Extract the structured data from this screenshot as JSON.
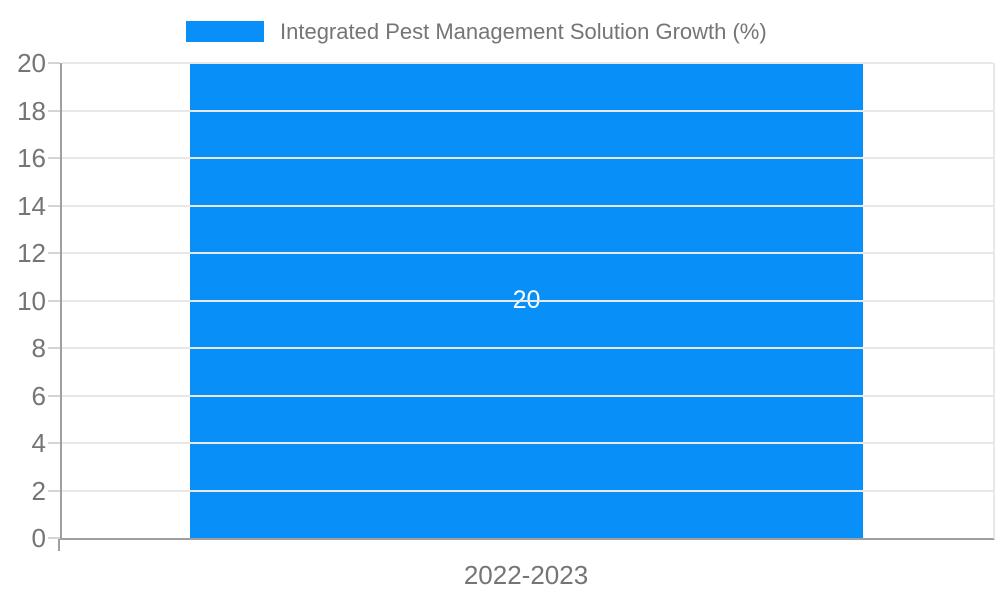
{
  "chart_data": {
    "type": "bar",
    "title": "Integrated Pest Management Solution Growth (%)",
    "categories": [
      "2022-2023"
    ],
    "series": [
      {
        "name": "Integrated Pest Management Solution Growth (%)",
        "values": [
          20
        ]
      }
    ],
    "bar_labels": [
      "20"
    ],
    "xlabel": "",
    "ylabel": "",
    "ylim": [
      0,
      20
    ],
    "ytick_step": 2,
    "yticks": [
      0,
      2,
      4,
      6,
      8,
      10,
      12,
      14,
      16,
      18,
      20
    ],
    "grid": true,
    "legend_position": "top"
  },
  "colors": {
    "bar": "#0890f8",
    "bar_label_text": "#ffffff",
    "grid_line": "#e8e8e8",
    "axis_line": "#9f9f9f",
    "tick_text": "#757575",
    "title_text": "#757575",
    "background": "#ffffff"
  }
}
